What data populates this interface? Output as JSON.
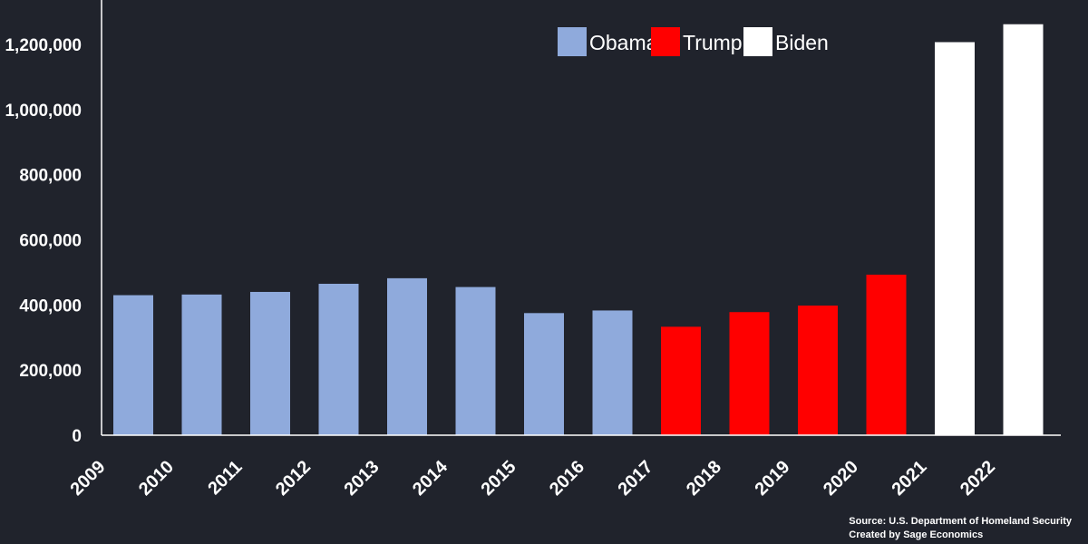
{
  "chart_data": {
    "type": "bar",
    "title": "",
    "xlabel": "",
    "ylabel": "",
    "categories": [
      "2009",
      "2010",
      "2011",
      "2012",
      "2013",
      "2014",
      "2015",
      "2016",
      "2017",
      "2018",
      "2019",
      "2020",
      "2021",
      "2022"
    ],
    "values": [
      430000,
      432000,
      440000,
      465000,
      482000,
      455000,
      375000,
      383000,
      333000,
      378000,
      398000,
      493000,
      1207000,
      1262000
    ],
    "bar_groups": [
      "Obama",
      "Obama",
      "Obama",
      "Obama",
      "Obama",
      "Obama",
      "Obama",
      "Obama",
      "Trump",
      "Trump",
      "Trump",
      "Trump",
      "Biden",
      "Biden"
    ],
    "ylim": [
      0,
      1300000
    ],
    "yticks": [
      0,
      200000,
      400000,
      600000,
      800000,
      1000000,
      1200000
    ],
    "ytick_labels": [
      "0",
      "200,000",
      "400,000",
      "600,000",
      "800,000",
      "1,000,000",
      "1,200,000"
    ],
    "grid": false,
    "legend": {
      "placement": "top-center",
      "entries": [
        {
          "name": "Obama",
          "color": "#8faadc"
        },
        {
          "name": "Trump",
          "color": "#ff0000"
        },
        {
          "name": "Biden",
          "color": "#ffffff"
        }
      ]
    }
  },
  "source": {
    "line1": "Source: U.S. Department of Homeland Security",
    "line2": "Created by Sage Economics"
  },
  "colors": {
    "background": "#20232c",
    "axis": "#ffffff"
  }
}
